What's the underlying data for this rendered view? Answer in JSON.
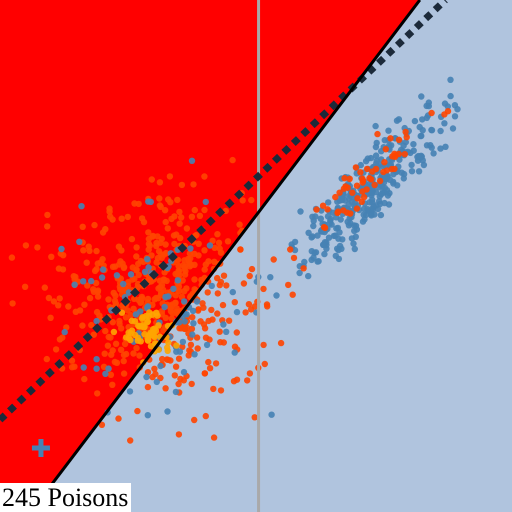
{
  "caption": "245 Poisons",
  "colors": {
    "background": "#b0c4de",
    "region": "#ff0000",
    "clean_points": "#4682b4",
    "poison_points": "#ff4500",
    "poison_core": "#ffa500",
    "decision_boundary": "#000000",
    "reference_boundary": "#1c2a3a",
    "vertical_line": "#a9a9a9",
    "marker": "#4682b4"
  },
  "chart_data": {
    "type": "scatter",
    "title": "",
    "xlabel": "",
    "ylabel": "",
    "xlim": [
      0,
      1
    ],
    "ylim": [
      0,
      1
    ],
    "grid": false,
    "legend": "none",
    "poison_count": 245,
    "lines": [
      {
        "style": "solid",
        "color": "#000000",
        "from": [
          0.06,
          0.0
        ],
        "to": [
          0.82,
          1.0
        ]
      },
      {
        "style": "dotted",
        "color": "#1c2a3a",
        "from": [
          0.0,
          0.18
        ],
        "to": [
          0.87,
          1.0
        ]
      },
      {
        "style": "vertical",
        "color": "#a9a9a9",
        "x": 0.505
      }
    ],
    "clusters": [
      {
        "class": "clean-upper",
        "color": "#4682b4",
        "center": [
          0.72,
          0.63
        ],
        "spread": [
          0.1,
          0.025
        ],
        "angle_deg": 47,
        "count": 330
      },
      {
        "class": "poison-upper",
        "color": "#ff4500",
        "center": [
          0.71,
          0.64
        ],
        "spread": [
          0.08,
          0.02
        ],
        "angle_deg": 47,
        "count": 60
      },
      {
        "class": "poison-lower",
        "color": "#ff4500",
        "center": [
          0.31,
          0.42
        ],
        "spread": [
          0.1,
          0.09
        ],
        "angle_deg": 45,
        "count": 520
      },
      {
        "class": "clean-lower",
        "color": "#4682b4",
        "center": [
          0.31,
          0.4
        ],
        "spread": [
          0.1,
          0.09
        ],
        "angle_deg": 45,
        "count": 90
      },
      {
        "class": "poison-core",
        "color": "#ffa500",
        "center": [
          0.29,
          0.35
        ],
        "spread": [
          0.025,
          0.025
        ],
        "angle_deg": 0,
        "count": 60
      }
    ],
    "marker": {
      "symbol": "plus",
      "x": 0.08,
      "y": 0.125
    }
  }
}
